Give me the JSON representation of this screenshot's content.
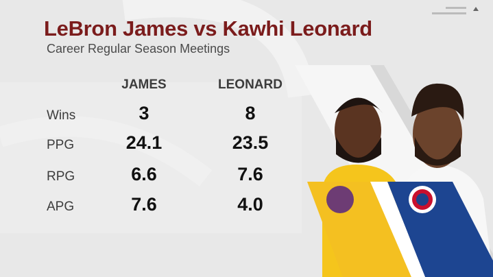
{
  "header": {
    "title": "LeBron James vs Kawhi Leonard",
    "subtitle": "Career Regular Season Meetings"
  },
  "table": {
    "columns": [
      "JAMES",
      "LEONARD"
    ],
    "rows": [
      {
        "label": "Wins",
        "values": [
          "3",
          "8"
        ]
      },
      {
        "label": "PPG",
        "values": [
          "24.1",
          "23.5"
        ]
      },
      {
        "label": "RPG",
        "values": [
          "6.6",
          "7.6"
        ]
      },
      {
        "label": "APG",
        "values": [
          "7.6",
          "4.0"
        ]
      }
    ]
  }
}
